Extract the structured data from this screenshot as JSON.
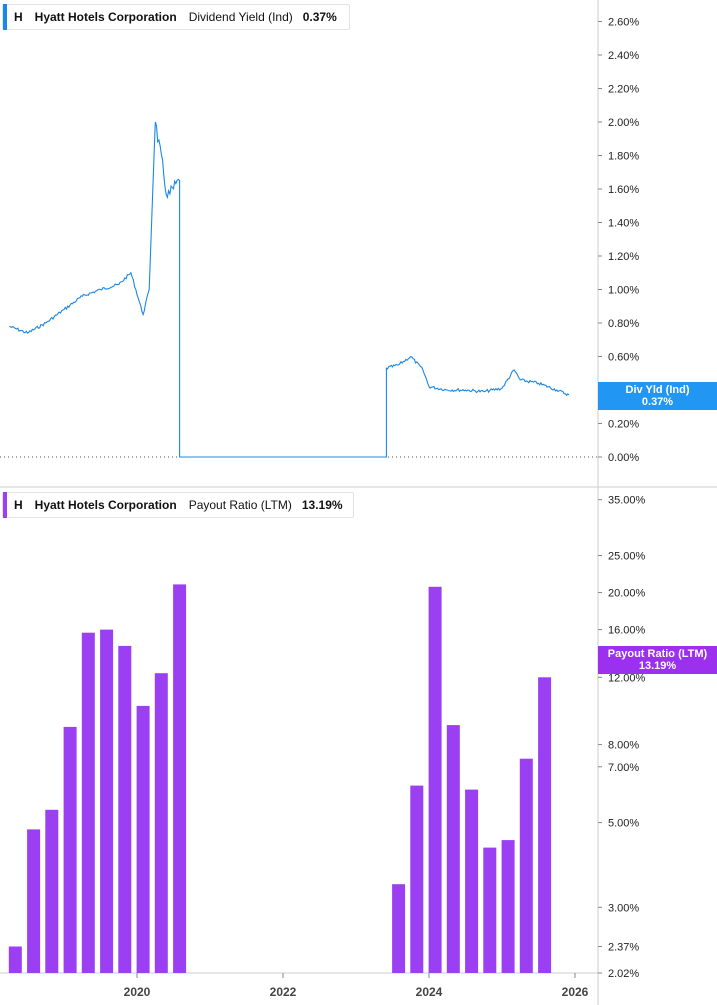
{
  "colors": {
    "yield": "#1a88e6",
    "yield_tag": "#2196f3",
    "payout": "#9b3ff2",
    "payout_tag": "#9b30ee",
    "axis": "#cccccc",
    "zero_line": "#555555"
  },
  "legend_top": {
    "ticker": "H",
    "company": "Hyatt Hotels Corporation",
    "metric": "Dividend Yield (Ind)",
    "value": "0.37%"
  },
  "legend_bottom": {
    "ticker": "H",
    "company": "Hyatt Hotels Corporation",
    "metric": "Payout Ratio (LTM)",
    "value": "13.19%"
  },
  "tag_top": {
    "label": "Div Yld (Ind)",
    "value": "0.37%"
  },
  "tag_bottom": {
    "label": "Payout Ratio (LTM)",
    "value": "13.19%"
  },
  "chart_data": [
    {
      "type": "line",
      "series": [
        {
          "name": "Dividend Yield (Ind)",
          "x": [
            "2018-04",
            "2018-07",
            "2018-10",
            "2019-01",
            "2019-04",
            "2019-07",
            "2019-10",
            "2019-12",
            "2020-02",
            "2020-03",
            "2020-04",
            "2020-06",
            "2020-08",
            "2020-08",
            "2023-06",
            "2023-06",
            "2023-08",
            "2023-10",
            "2023-12",
            "2024-01",
            "2024-04",
            "2024-07",
            "2024-10",
            "2025-01",
            "2025-03",
            "2025-04",
            "2025-07",
            "2025-10",
            "2025-12"
          ],
          "values": [
            0.78,
            0.74,
            0.8,
            0.88,
            0.96,
            1.0,
            1.03,
            1.1,
            0.85,
            1.0,
            2.0,
            1.55,
            1.65,
            0.0,
            0.0,
            0.53,
            0.55,
            0.6,
            0.52,
            0.42,
            0.4,
            0.4,
            0.39,
            0.41,
            0.52,
            0.46,
            0.44,
            0.4,
            0.37
          ]
        }
      ],
      "y_ticks": [
        "0.00%",
        "0.20%",
        "0.40%",
        "0.60%",
        "0.80%",
        "1.00%",
        "1.20%",
        "1.40%",
        "1.60%",
        "1.80%",
        "2.00%",
        "2.20%",
        "2.40%",
        "2.60%"
      ],
      "ylim": [
        0,
        2.7
      ]
    },
    {
      "type": "bar",
      "series": [
        {
          "name": "Payout Ratio (LTM)",
          "x": [
            "2018-05",
            "2018-08",
            "2018-11",
            "2019-02",
            "2019-05",
            "2019-08",
            "2019-11",
            "2020-02",
            "2020-05",
            "2020-08",
            "2023-08",
            "2023-11",
            "2024-02",
            "2024-05",
            "2024-08",
            "2024-11",
            "2025-02",
            "2025-05",
            "2025-08"
          ],
          "values": [
            2.37,
            4.8,
            5.4,
            8.9,
            15.7,
            16.0,
            14.5,
            10.1,
            12.3,
            21.0,
            3.45,
            6.25,
            20.7,
            9.0,
            6.1,
            4.3,
            4.5,
            7.35,
            12.0
          ]
        }
      ],
      "y_ticks": [
        "2.02%",
        "2.37%",
        "3.00%",
        "5.00%",
        "7.00%",
        "8.00%",
        "12.00%",
        "16.00%",
        "20.00%",
        "25.00%",
        "35.00%"
      ],
      "yscale": "log",
      "ylim": [
        2.02,
        36
      ]
    }
  ],
  "x_ticks": [
    "2020",
    "2022",
    "2024",
    "2026"
  ]
}
